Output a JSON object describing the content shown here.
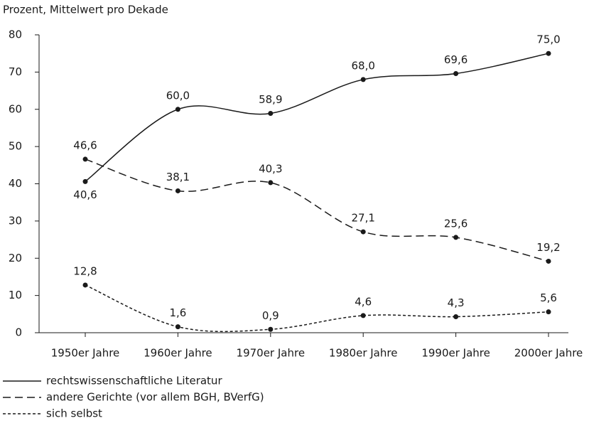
{
  "chart_data": {
    "type": "line",
    "title": "Prozent, Mittelwert pro Dekade",
    "categories": [
      "1950er Jahre",
      "1960er Jahre",
      "1970er Jahre",
      "1980er Jahre",
      "1990er Jahre",
      "2000er Jahre"
    ],
    "series": [
      {
        "name": "rechtswissenschaftliche Literatur",
        "color": "#1a1a1a",
        "line_style": "solid",
        "values": [
          40.6,
          60.0,
          58.9,
          68.0,
          69.6,
          75.0
        ],
        "value_labels": [
          "40,6",
          "60,0",
          "58,9",
          "68,0",
          "69,6",
          "75,0"
        ]
      },
      {
        "name": "andere Gerichte (vor allem BGH, BVerfG)",
        "color": "#1a1a1a",
        "line_style": "dashed",
        "values": [
          46.6,
          38.1,
          40.3,
          27.1,
          25.6,
          19.2
        ],
        "value_labels": [
          "46,6",
          "38,1",
          "40,3",
          "27,1",
          "25,6",
          "19,2"
        ]
      },
      {
        "name": "sich selbst",
        "color": "#1a1a1a",
        "line_style": "dotted",
        "values": [
          12.8,
          1.6,
          0.9,
          4.6,
          4.3,
          5.6
        ],
        "value_labels": [
          "12,8",
          "1,6",
          "0,9",
          "4,6",
          "4,3",
          "5,6"
        ]
      }
    ],
    "ylim": [
      0,
      80
    ],
    "yticks": [
      0,
      10,
      20,
      30,
      40,
      50,
      60,
      70,
      80
    ],
    "grid": false
  }
}
